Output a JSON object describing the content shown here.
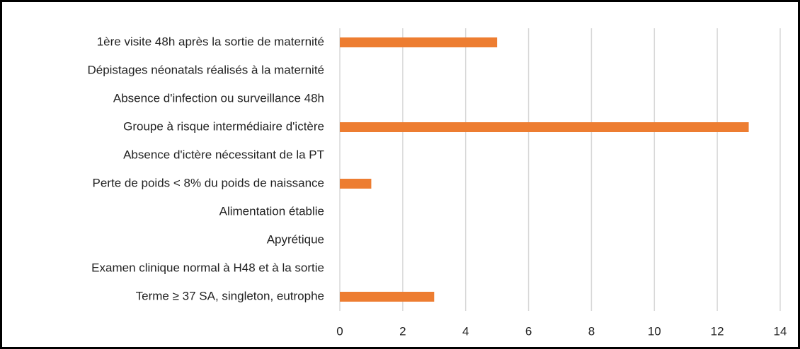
{
  "chart_data": {
    "type": "barh",
    "categories": [
      "1ère visite 48h après la sortie de maternité",
      "Dépistages néonatals réalisés à la maternité",
      "Absence d'infection ou surveillance 48h",
      "Groupe à risque intermédiaire d'ictère",
      "Absence d'ictère nécessitant de la PT",
      "Perte de poids < 8% du poids de naissance",
      "Alimentation établie",
      "Apyrétique",
      "Examen clinique normal à H48 et à la sortie",
      "Terme ≥ 37 SA, singleton, eutrophe"
    ],
    "values": [
      5,
      0,
      0,
      13,
      0,
      1,
      0,
      0,
      0,
      3
    ],
    "color": "#ed7d31",
    "xlim": [
      0,
      14
    ],
    "xticks": [
      0,
      2,
      4,
      6,
      8,
      10,
      12,
      14
    ],
    "grid": true
  }
}
